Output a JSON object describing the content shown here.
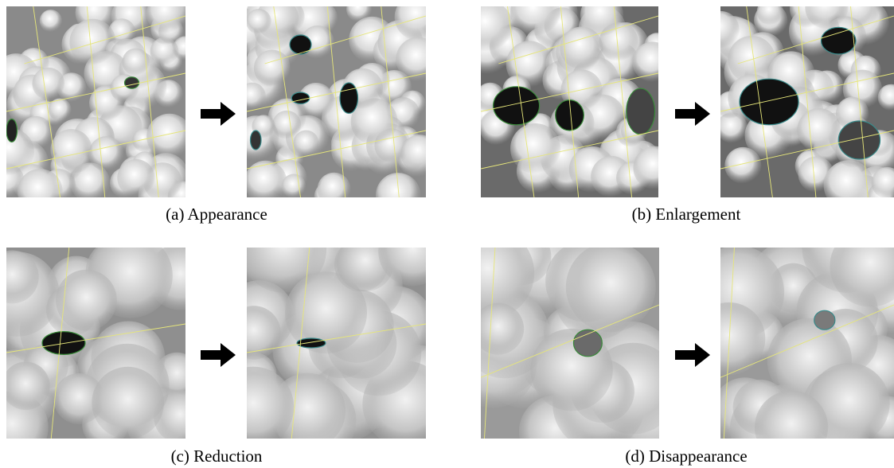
{
  "panels": [
    {
      "caption": "(a) Appearance"
    },
    {
      "caption": "(b) Enlargement"
    },
    {
      "caption": "(c) Reduction"
    },
    {
      "caption": "(d) Disappearance"
    }
  ]
}
